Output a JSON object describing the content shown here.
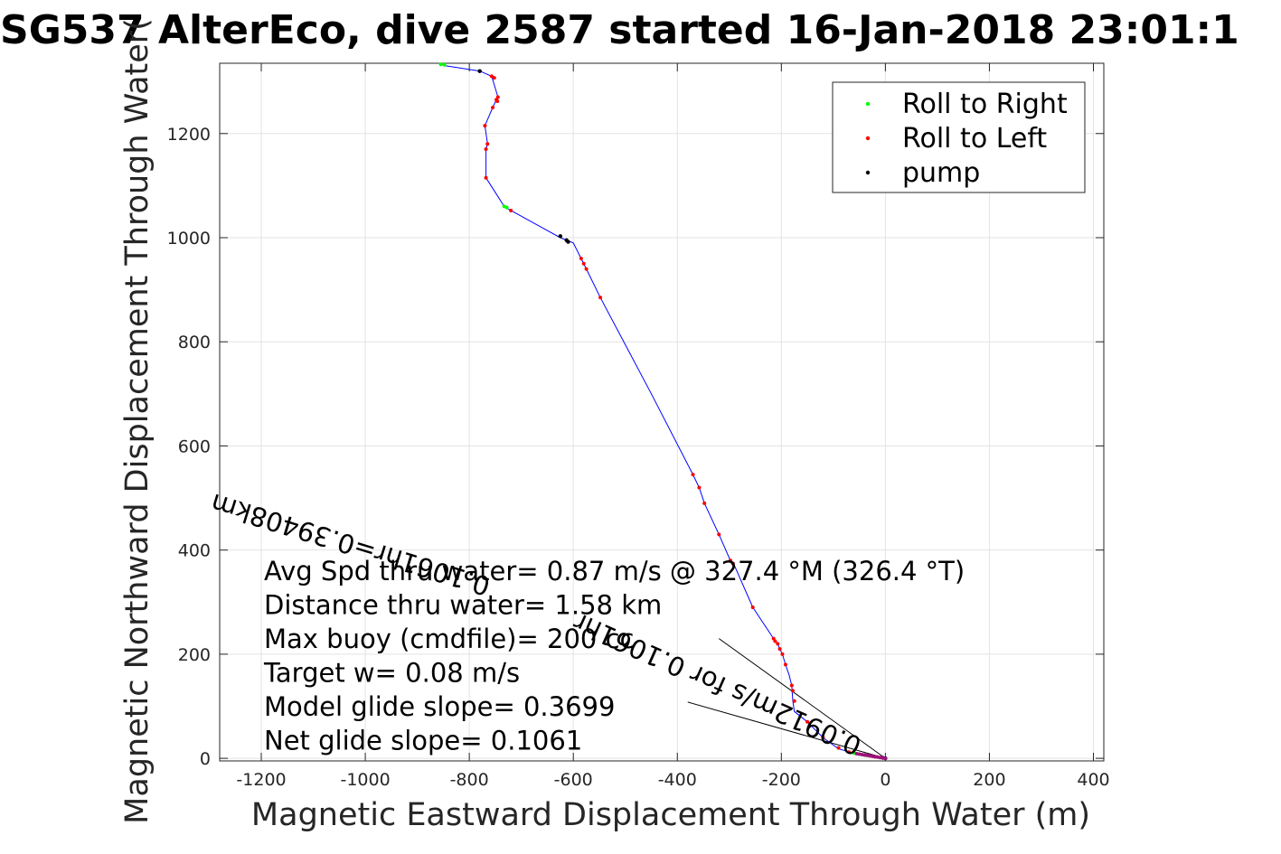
{
  "chart_data": {
    "type": "line",
    "title": "SG537 AlterEco, dive 2587 started 16-Jan-2018 23:01:1",
    "xlabel": "Magnetic Eastward Displacement Through Water (m)",
    "ylabel": "Magnetic Northward Displacement Through Water(",
    "xlim": [
      -1280,
      420
    ],
    "ylim": [
      -5,
      1335
    ],
    "xticks": [
      -1200,
      -1000,
      -800,
      -600,
      -400,
      -200,
      0,
      200,
      400
    ],
    "yticks": [
      0,
      200,
      400,
      600,
      800,
      1000,
      1200
    ],
    "grid": true,
    "legend_position": "top-right",
    "legend": [
      {
        "label": "Roll to Right",
        "color": "#00ff00"
      },
      {
        "label": "Roll to Left",
        "color": "#ff0000"
      },
      {
        "label": "pump",
        "color": "#000000"
      }
    ],
    "track_color": "#0000ff",
    "track": [
      [
        0,
        0
      ],
      [
        -10,
        2
      ],
      [
        -30,
        5
      ],
      [
        -60,
        10
      ],
      [
        -90,
        18
      ],
      [
        -120,
        40
      ],
      [
        -150,
        70
      ],
      [
        -175,
        90
      ],
      [
        -178,
        110
      ],
      [
        -180,
        140
      ],
      [
        -185,
        160
      ],
      [
        -192,
        180
      ],
      [
        -198,
        200
      ],
      [
        -203,
        210
      ],
      [
        -207,
        220
      ],
      [
        -215,
        230
      ],
      [
        -255,
        290
      ],
      [
        -290,
        370
      ],
      [
        -298,
        380
      ],
      [
        -320,
        430
      ],
      [
        -348,
        490
      ],
      [
        -358,
        520
      ],
      [
        -370,
        545
      ],
      [
        -450,
        700
      ],
      [
        -548,
        885
      ],
      [
        -575,
        940
      ],
      [
        -585,
        960
      ],
      [
        -600,
        990
      ],
      [
        -625,
        1000
      ],
      [
        -725,
        1055
      ],
      [
        -733,
        1060
      ],
      [
        -768,
        1115
      ],
      [
        -768,
        1170
      ],
      [
        -765,
        1180
      ],
      [
        -770,
        1215
      ],
      [
        -755,
        1250
      ],
      [
        -748,
        1265
      ],
      [
        -745,
        1270
      ],
      [
        -757,
        1310
      ],
      [
        -780,
        1320
      ],
      [
        -845,
        1330
      ],
      [
        -855,
        1333
      ]
    ],
    "roll_right": [
      [
        -855,
        1333
      ],
      [
        -848,
        1332
      ],
      [
        -733,
        1060
      ],
      [
        -728,
        1058
      ],
      [
        -60,
        10
      ],
      [
        -40,
        6
      ]
    ],
    "roll_left": [
      [
        -757,
        1310
      ],
      [
        -752,
        1307
      ],
      [
        -745,
        1270
      ],
      [
        -748,
        1265
      ],
      [
        -746,
        1262
      ],
      [
        -755,
        1250
      ],
      [
        -770,
        1215
      ],
      [
        -765,
        1180
      ],
      [
        -768,
        1170
      ],
      [
        -768,
        1115
      ],
      [
        -720,
        1052
      ],
      [
        -585,
        960
      ],
      [
        -580,
        950
      ],
      [
        -575,
        940
      ],
      [
        -548,
        885
      ],
      [
        -370,
        545
      ],
      [
        -358,
        520
      ],
      [
        -348,
        490
      ],
      [
        -320,
        430
      ],
      [
        -298,
        380
      ],
      [
        -293,
        374
      ],
      [
        -255,
        290
      ],
      [
        -215,
        230
      ],
      [
        -212,
        225
      ],
      [
        -207,
        220
      ],
      [
        -203,
        210
      ],
      [
        -198,
        200
      ],
      [
        -192,
        180
      ],
      [
        -180,
        140
      ],
      [
        -178,
        130
      ],
      [
        -175,
        110
      ],
      [
        -150,
        70
      ],
      [
        -120,
        40
      ],
      [
        -90,
        20
      ],
      [
        -70,
        12
      ],
      [
        -20,
        3
      ]
    ],
    "pump": [
      [
        -780,
        1320
      ],
      [
        -625,
        1003
      ],
      [
        -613,
        995
      ],
      [
        -610,
        992
      ],
      [
        0,
        0
      ],
      [
        -5,
        1
      ]
    ],
    "lines": [
      {
        "from": [
          0,
          0
        ],
        "to": [
          -380,
          108
        ]
      },
      {
        "from": [
          0,
          0
        ],
        "to": [
          -320,
          230
        ]
      }
    ],
    "annotations": [
      "Avg Spd thru water=  0.87 m/s @ 327.4 °M (326.4 °T)",
      "Distance thru water= 1.58 km",
      "Max buoy (cmdfile)= 200 cc",
      "Target w= 0.08 m/s",
      "Model glide slope= 0.3699",
      "Net glide slope= 0.1061"
    ],
    "rotated_labels": [
      "0.1061hr=0.39408km",
      "0.0912m/s for 0.1061hr"
    ]
  }
}
